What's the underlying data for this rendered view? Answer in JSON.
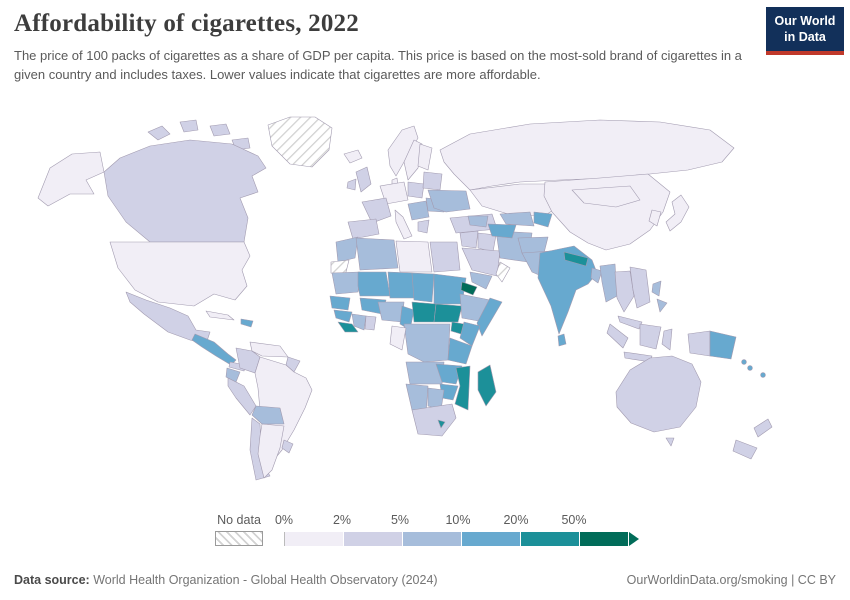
{
  "header": {
    "title": "Affordability of cigarettes, 2022",
    "subtitle": "The price of 100 packs of cigarettes as a share of GDP per capita. This price is based on the most-sold brand of cigarettes in a given country and includes taxes. Lower values indicate that cigarettes are more affordable.",
    "logo": {
      "line1": "Our World",
      "line2": "in Data",
      "bg": "#12305a",
      "accent": "#c0392b"
    }
  },
  "legend": {
    "no_data_label": "No data",
    "ticks": [
      "0%",
      "2%",
      "5%",
      "10%",
      "20%",
      "50%"
    ],
    "colors": [
      "#f1eef6",
      "#d0d1e6",
      "#a6bddb",
      "#67a9cf",
      "#1c9099",
      "#016c59"
    ]
  },
  "footer": {
    "source_label": "Data source:",
    "source_text": " World Health Organization - Global Health Observatory (2024)",
    "right_text": "OurWorldinData.org/smoking | CC BY"
  },
  "chart_data": {
    "type": "choropleth-map",
    "title": "Affordability of cigarettes, 2022",
    "unit": "price of 100 packs as % of GDP per capita",
    "legend_position": "bottom",
    "bins": [
      {
        "label": "0-2%",
        "color": "#f1eef6"
      },
      {
        "label": "2-5%",
        "color": "#d0d1e6"
      },
      {
        "label": "5-10%",
        "color": "#a6bddb"
      },
      {
        "label": "10-20%",
        "color": "#67a9cf"
      },
      {
        "label": "20-50%",
        "color": "#1c9099"
      },
      {
        "label": "50%+",
        "color": "#016c59"
      },
      {
        "label": "No data",
        "color": "hatch"
      }
    ],
    "countries": [
      {
        "key": "usa",
        "name": "United States",
        "bin": "0-2%"
      },
      {
        "key": "canada",
        "name": "Canada",
        "bin": "2-5%"
      },
      {
        "key": "greenland",
        "name": "Greenland",
        "bin": "No data"
      },
      {
        "key": "mexico",
        "name": "Mexico",
        "bin": "2-5%"
      },
      {
        "key": "guatemala",
        "name": "Guatemala",
        "bin": "10-20%"
      },
      {
        "key": "honduras",
        "name": "Honduras",
        "bin": "10-20%"
      },
      {
        "key": "nicaragua",
        "name": "Nicaragua",
        "bin": "10-20%"
      },
      {
        "key": "costa-rica",
        "name": "Costa Rica",
        "bin": "2-5%"
      },
      {
        "key": "panama",
        "name": "Panama",
        "bin": "2-5%"
      },
      {
        "key": "cuba",
        "name": "Cuba",
        "bin": "0-2%"
      },
      {
        "key": "haiti",
        "name": "Haiti",
        "bin": "10-20%"
      },
      {
        "key": "dominican-republic",
        "name": "Dominican Republic",
        "bin": "10-20%"
      },
      {
        "key": "colombia",
        "name": "Colombia",
        "bin": "2-5%"
      },
      {
        "key": "venezuela",
        "name": "Venezuela",
        "bin": "0-2%"
      },
      {
        "key": "guyana",
        "name": "Guyana",
        "bin": "2-5%"
      },
      {
        "key": "ecuador",
        "name": "Ecuador",
        "bin": "5-10%"
      },
      {
        "key": "peru",
        "name": "Peru",
        "bin": "2-5%"
      },
      {
        "key": "brazil",
        "name": "Brazil",
        "bin": "0-2%"
      },
      {
        "key": "bolivia",
        "name": "Bolivia",
        "bin": "5-10%"
      },
      {
        "key": "paraguay",
        "name": "Paraguay",
        "bin": "0-2%"
      },
      {
        "key": "chile",
        "name": "Chile",
        "bin": "2-5%"
      },
      {
        "key": "argentina",
        "name": "Argentina",
        "bin": "0-2%"
      },
      {
        "key": "uruguay",
        "name": "Uruguay",
        "bin": "2-5%"
      },
      {
        "key": "iceland",
        "name": "Iceland",
        "bin": "0-2%"
      },
      {
        "key": "uk",
        "name": "United Kingdom",
        "bin": "2-5%"
      },
      {
        "key": "ireland",
        "name": "Ireland",
        "bin": "2-5%"
      },
      {
        "key": "france",
        "name": "France",
        "bin": "2-5%"
      },
      {
        "key": "spain",
        "name": "Spain",
        "bin": "2-5%"
      },
      {
        "key": "germany",
        "name": "Germany",
        "bin": "0-2%"
      },
      {
        "key": "denmark",
        "name": "Denmark",
        "bin": "0-2%"
      },
      {
        "key": "norway",
        "name": "Norway",
        "bin": "0-2%"
      },
      {
        "key": "sweden",
        "name": "Sweden",
        "bin": "0-2%"
      },
      {
        "key": "finland",
        "name": "Finland",
        "bin": "0-2%"
      },
      {
        "key": "poland",
        "name": "Poland",
        "bin": "2-5%"
      },
      {
        "key": "belarus",
        "name": "Belarus",
        "bin": "2-5%"
      },
      {
        "key": "ukraine",
        "name": "Ukraine",
        "bin": "5-10%"
      },
      {
        "key": "romania",
        "name": "Romania",
        "bin": "5-10%"
      },
      {
        "key": "serbia",
        "name": "Serbia",
        "bin": "5-10%"
      },
      {
        "key": "italy",
        "name": "Italy",
        "bin": "0-2%"
      },
      {
        "key": "greece",
        "name": "Greece",
        "bin": "2-5%"
      },
      {
        "key": "russia",
        "name": "Russia",
        "bin": "0-2%"
      },
      {
        "key": "turkey",
        "name": "Turkey",
        "bin": "2-5%"
      },
      {
        "key": "syria",
        "name": "Syria",
        "bin": "2-5%"
      },
      {
        "key": "iraq",
        "name": "Iraq",
        "bin": "2-5%"
      },
      {
        "key": "saudi-arabia",
        "name": "Saudi Arabia",
        "bin": "2-5%"
      },
      {
        "key": "yemen",
        "name": "Yemen",
        "bin": "5-10%"
      },
      {
        "key": "oman",
        "name": "Oman",
        "bin": "No data"
      },
      {
        "key": "iran",
        "name": "Iran",
        "bin": "5-10%"
      },
      {
        "key": "azerbaijan",
        "name": "Azerbaijan",
        "bin": "5-10%"
      },
      {
        "key": "kazakhstan",
        "name": "Kazakhstan",
        "bin": "0-2%"
      },
      {
        "key": "uzbekistan",
        "name": "Uzbekistan",
        "bin": "5-10%"
      },
      {
        "key": "turkmenistan",
        "name": "Turkmenistan",
        "bin": "10-20%"
      },
      {
        "key": "kyrgyzstan",
        "name": "Kyrgyzstan",
        "bin": "10-20%"
      },
      {
        "key": "afghanistan",
        "name": "Afghanistan",
        "bin": "5-10%"
      },
      {
        "key": "pakistan",
        "name": "Pakistan",
        "bin": "5-10%"
      },
      {
        "key": "india",
        "name": "India",
        "bin": "10-20%"
      },
      {
        "key": "nepal",
        "name": "Nepal",
        "bin": "20-50%"
      },
      {
        "key": "bangladesh",
        "name": "Bangladesh",
        "bin": "5-10%"
      },
      {
        "key": "sri-lanka",
        "name": "Sri Lanka",
        "bin": "10-20%"
      },
      {
        "key": "myanmar",
        "name": "Myanmar",
        "bin": "5-10%"
      },
      {
        "key": "thailand",
        "name": "Thailand",
        "bin": "2-5%"
      },
      {
        "key": "vietnam",
        "name": "Vietnam",
        "bin": "2-5%"
      },
      {
        "key": "malaysia",
        "name": "Malaysia",
        "bin": "2-5%"
      },
      {
        "key": "indonesia",
        "name": "Indonesia",
        "bin": "2-5%"
      },
      {
        "key": "philippines",
        "name": "Philippines",
        "bin": "5-10%"
      },
      {
        "key": "china",
        "name": "China",
        "bin": "0-2%"
      },
      {
        "key": "mongolia",
        "name": "Mongolia",
        "bin": "0-2%"
      },
      {
        "key": "japan",
        "name": "Japan",
        "bin": "0-2%"
      },
      {
        "key": "south-korea",
        "name": "South Korea",
        "bin": "0-2%"
      },
      {
        "key": "papua-new-guinea",
        "name": "Papua New Guinea",
        "bin": "10-20%"
      },
      {
        "key": "solomon-islands",
        "name": "Solomon Islands",
        "bin": "10-20%"
      },
      {
        "key": "fiji",
        "name": "Fiji",
        "bin": "10-20%"
      },
      {
        "key": "australia",
        "name": "Australia",
        "bin": "2-5%"
      },
      {
        "key": "new-zealand",
        "name": "New Zealand",
        "bin": "2-5%"
      },
      {
        "key": "morocco",
        "name": "Morocco",
        "bin": "5-10%"
      },
      {
        "key": "western-sahara",
        "name": "Western Sahara",
        "bin": "No data"
      },
      {
        "key": "algeria",
        "name": "Algeria",
        "bin": "5-10%"
      },
      {
        "key": "libya",
        "name": "Libya",
        "bin": "0-2%"
      },
      {
        "key": "egypt",
        "name": "Egypt",
        "bin": "2-5%"
      },
      {
        "key": "mauritania",
        "name": "Mauritania",
        "bin": "5-10%"
      },
      {
        "key": "mali",
        "name": "Mali",
        "bin": "10-20%"
      },
      {
        "key": "niger",
        "name": "Niger",
        "bin": "10-20%"
      },
      {
        "key": "chad",
        "name": "Chad",
        "bin": "10-20%"
      },
      {
        "key": "sudan",
        "name": "Sudan",
        "bin": "10-20%"
      },
      {
        "key": "eritrea",
        "name": "Eritrea",
        "bin": "50%+"
      },
      {
        "key": "ethiopia",
        "name": "Ethiopia",
        "bin": "5-10%"
      },
      {
        "key": "somalia",
        "name": "Somalia",
        "bin": "10-20%"
      },
      {
        "key": "senegal",
        "name": "Senegal",
        "bin": "10-20%"
      },
      {
        "key": "guinea",
        "name": "Guinea",
        "bin": "10-20%"
      },
      {
        "key": "sierra-leone",
        "name": "Sierra Leone",
        "bin": "20-50%"
      },
      {
        "key": "liberia",
        "name": "Liberia",
        "bin": "20-50%"
      },
      {
        "key": "cote-divoire",
        "name": "Cote d'Ivoire",
        "bin": "5-10%"
      },
      {
        "key": "ghana",
        "name": "Ghana",
        "bin": "2-5%"
      },
      {
        "key": "burkina-faso",
        "name": "Burkina Faso",
        "bin": "10-20%"
      },
      {
        "key": "nigeria",
        "name": "Nigeria",
        "bin": "5-10%"
      },
      {
        "key": "cameroon",
        "name": "Cameroon",
        "bin": "10-20%"
      },
      {
        "key": "central-african-republic",
        "name": "Central African Republic",
        "bin": "20-50%"
      },
      {
        "key": "south-sudan",
        "name": "South Sudan",
        "bin": "20-50%"
      },
      {
        "key": "uganda",
        "name": "Uganda",
        "bin": "20-50%"
      },
      {
        "key": "rwanda",
        "name": "Rwanda",
        "bin": "20-50%"
      },
      {
        "key": "burundi",
        "name": "Burundi",
        "bin": "20-50%"
      },
      {
        "key": "kenya",
        "name": "Kenya",
        "bin": "10-20%"
      },
      {
        "key": "tanzania",
        "name": "Tanzania",
        "bin": "10-20%"
      },
      {
        "key": "dr-congo",
        "name": "Democratic Republic of Congo",
        "bin": "5-10%"
      },
      {
        "key": "gabon",
        "name": "Gabon",
        "bin": "0-2%"
      },
      {
        "key": "angola",
        "name": "Angola",
        "bin": "5-10%"
      },
      {
        "key": "zambia",
        "name": "Zambia",
        "bin": "10-20%"
      },
      {
        "key": "malawi",
        "name": "Malawi",
        "bin": "20-50%"
      },
      {
        "key": "mozambique",
        "name": "Mozambique",
        "bin": "20-50%"
      },
      {
        "key": "madagascar",
        "name": "Madagascar",
        "bin": "20-50%"
      },
      {
        "key": "zimbabwe",
        "name": "Zimbabwe",
        "bin": "10-20%"
      },
      {
        "key": "namibia",
        "name": "Namibia",
        "bin": "5-10%"
      },
      {
        "key": "botswana",
        "name": "Botswana",
        "bin": "5-10%"
      },
      {
        "key": "south-africa",
        "name": "South Africa",
        "bin": "2-5%"
      },
      {
        "key": "lesotho",
        "name": "Lesotho",
        "bin": "20-50%"
      }
    ]
  }
}
